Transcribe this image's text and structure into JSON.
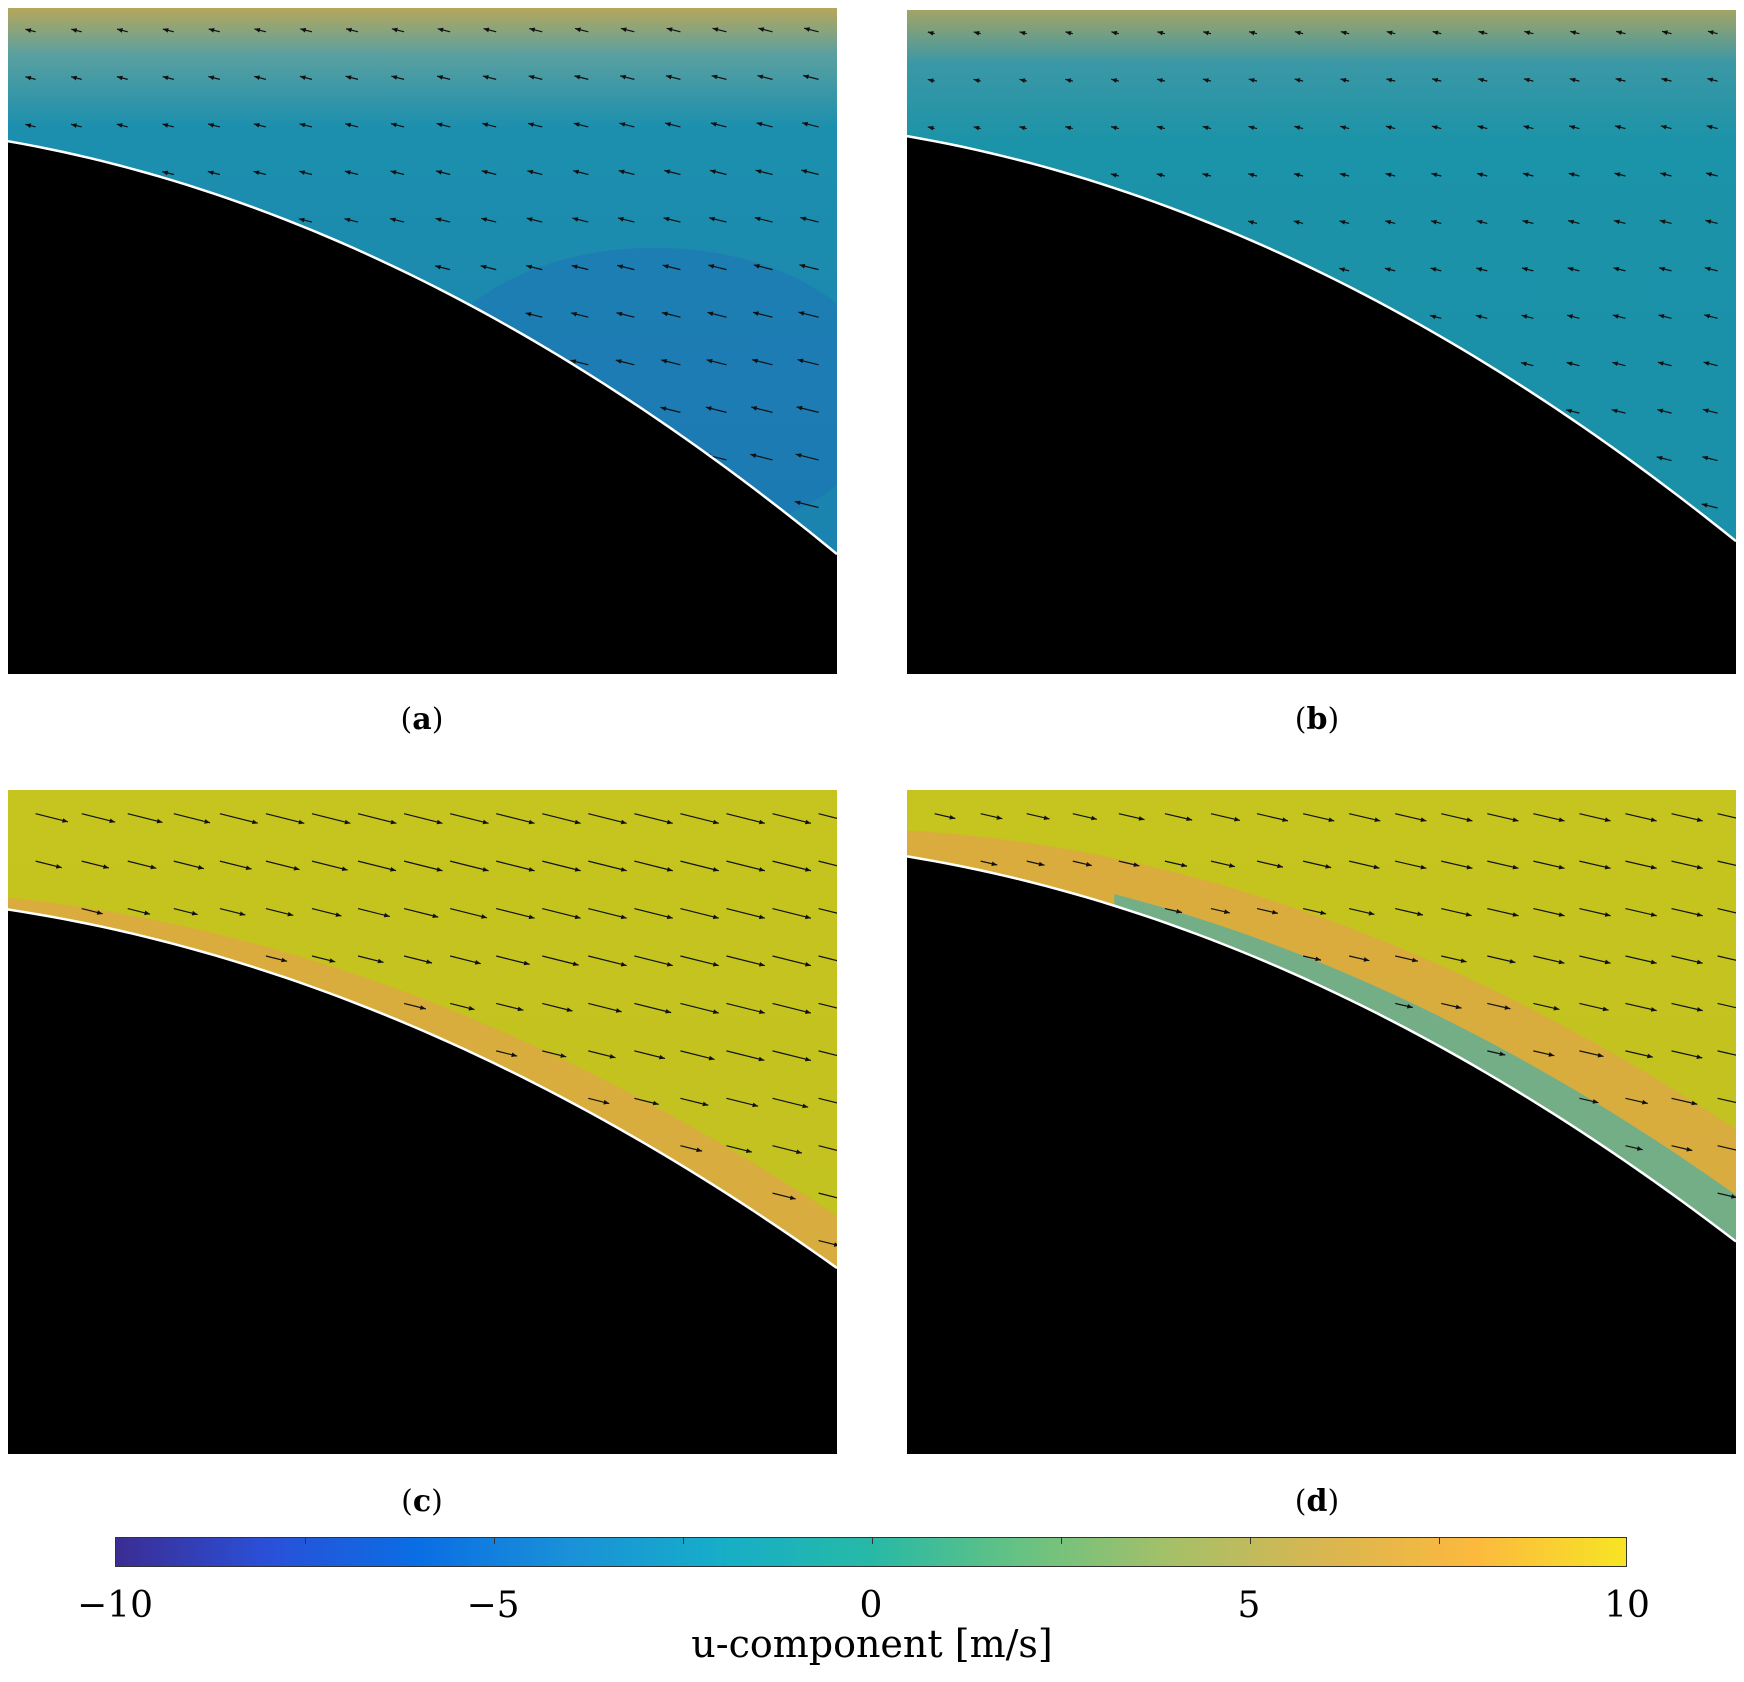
{
  "colorbar": {
    "label": "u-component [m/s]",
    "min": -10,
    "max": 10,
    "ticks": [
      {
        "value": -10,
        "label": "−10"
      },
      {
        "value": -5,
        "label": "−5"
      },
      {
        "value": 0,
        "label": "0"
      },
      {
        "value": 5,
        "label": "5"
      },
      {
        "value": 10,
        "label": "10"
      }
    ],
    "colors": [
      "#3b2d93",
      "#2a50d8",
      "#0a6ee4",
      "#1a91d8",
      "#16aec8",
      "#27b9a6",
      "#67c282",
      "#a6c068",
      "#d9b650",
      "#fcb93e",
      "#f7e425"
    ]
  },
  "chart_data": [
    {
      "type": "heatmap",
      "caption_letter": "a",
      "field_color": "#1a8aa8",
      "colorbar_label": "u-component [m/s]",
      "colorbar_range": [
        -10,
        10
      ],
      "flow_direction": "negative u (leftward, upward)",
      "vector_u": -1.2,
      "vector_v": -0.3
    },
    {
      "type": "heatmap",
      "caption_letter": "b",
      "field_color": "#1c93a6",
      "colorbar_label": "u-component [m/s]",
      "colorbar_range": [
        -10,
        10
      ],
      "flow_direction": "negative u (leftward)",
      "vector_u": -0.8,
      "vector_v": -0.2
    },
    {
      "type": "heatmap",
      "caption_letter": "c",
      "field_color": "#c3c321",
      "colorbar_label": "u-component [m/s]",
      "colorbar_range": [
        -10,
        10
      ],
      "flow_direction": "positive u (rightward, downward)",
      "vector_u": 3.2,
      "vector_v": 0.8
    },
    {
      "type": "heatmap",
      "caption_letter": "d",
      "field_color": "#c2c21f",
      "colorbar_label": "u-component [m/s]",
      "colorbar_range": [
        -10,
        10
      ],
      "flow_direction": "positive u (rightward, downward)",
      "vector_u": 2.6,
      "vector_v": 0.6
    }
  ]
}
